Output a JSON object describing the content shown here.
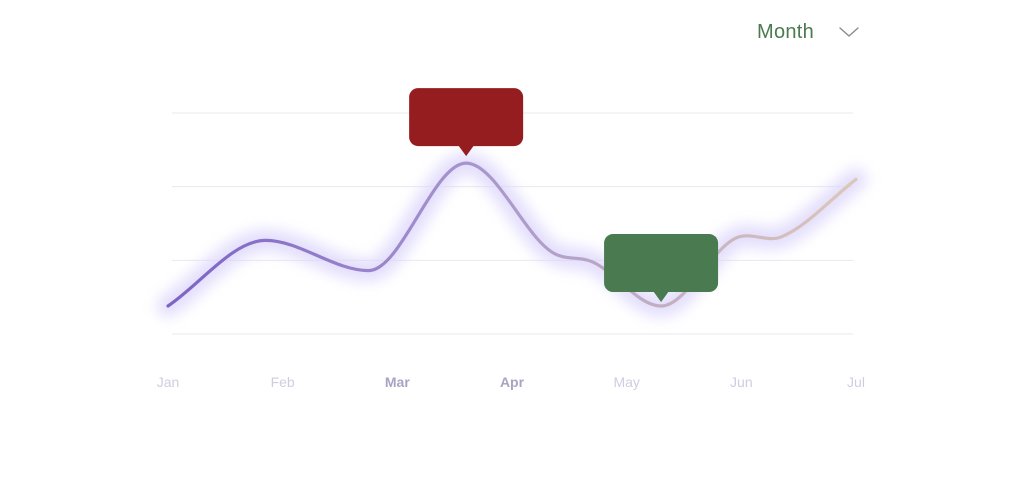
{
  "range_selector": {
    "label": "Month",
    "icon": "chevron-down-icon"
  },
  "colors": {
    "line_start": "#7c63c6",
    "line_mid": "#a996cc",
    "line_end": "#dcc8b8",
    "glow": "#d9d3fb",
    "gridline": "#e8e8ef",
    "tooltip_high": "#951c1f",
    "tooltip_low": "#4a7a50",
    "selector_text": "#4a7a50"
  },
  "chart_data": {
    "type": "line",
    "x": [
      "Jan",
      "Feb",
      "Mar",
      "Apr",
      "May",
      "Jun",
      "Jul"
    ],
    "highlighted_ticks": [
      "Mar",
      "Apr"
    ],
    "curve": [
      {
        "x": 0,
        "y": 0.38
      },
      {
        "x": 0.85,
        "y": 1.27
      },
      {
        "x": 1.75,
        "y": 0.86
      },
      {
        "x": 2.6,
        "y": 2.32
      },
      {
        "x": 3.35,
        "y": 1.11
      },
      {
        "x": 3.7,
        "y": 0.98
      },
      {
        "x": 4.3,
        "y": 0.38
      },
      {
        "x": 4.95,
        "y": 1.3
      },
      {
        "x": 5.35,
        "y": 1.32
      },
      {
        "x": 6,
        "y": 2.1
      }
    ],
    "ylim": [
      0,
      3
    ],
    "grid": true,
    "annotations": [
      {
        "kind": "peak",
        "x": 2.6
      },
      {
        "kind": "trough",
        "x": 4.3
      }
    ]
  }
}
